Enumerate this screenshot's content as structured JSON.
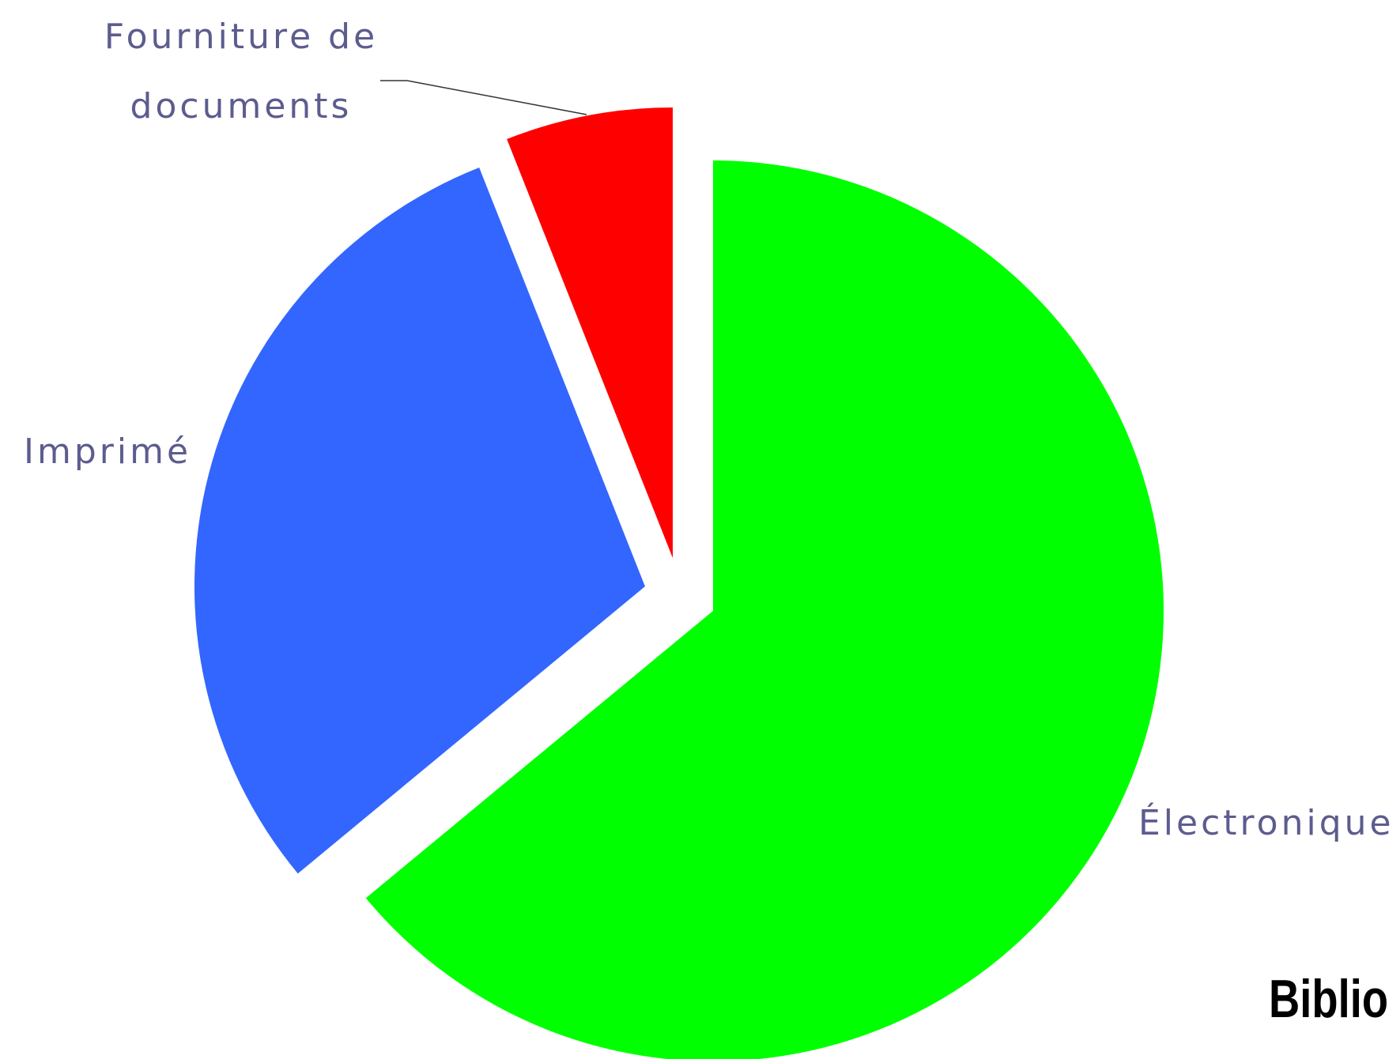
{
  "chart_data": {
    "type": "pie",
    "categories": [
      "Électronique",
      "Imprimé",
      "Fourniture de documents"
    ],
    "values": [
      64,
      30,
      6
    ],
    "colors": [
      "#00ff00",
      "#3366ff",
      "#ff0000"
    ],
    "logo": "Biblio"
  }
}
